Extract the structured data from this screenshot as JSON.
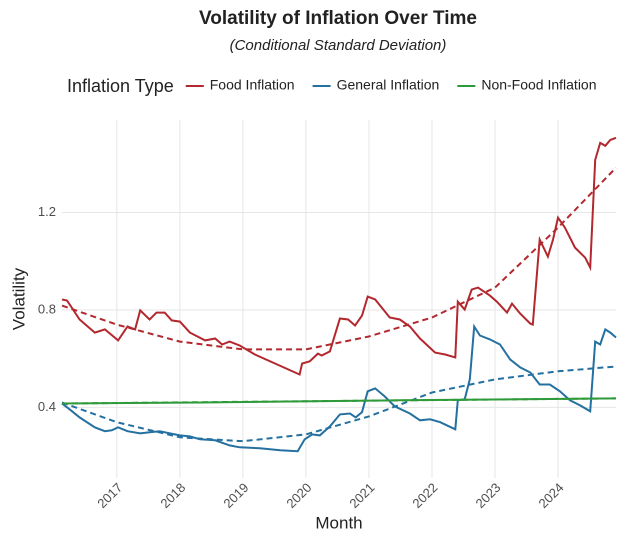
{
  "chart_data": {
    "type": "line",
    "title": "Volatility of Inflation Over Time",
    "subtitle": "(Conditional Standard Deviation)",
    "x_label": "Month",
    "y_label": "Volatility",
    "legend_title": "Inflation Type",
    "legend_position": "top",
    "grid": true,
    "xlim": [
      2016.13,
      2024.92
    ],
    "xticks": [
      2017,
      2018,
      2019,
      2020,
      2021,
      2022,
      2023,
      2024
    ],
    "ylim": [
      0.11,
      1.58
    ],
    "yticks": [
      0.4,
      0.8,
      1.2
    ],
    "series": [
      {
        "name": "Food Inflation",
        "color": "#b2282e",
        "x": [
          2016.13,
          2016.21,
          2016.41,
          2016.65,
          2016.81,
          2017.02,
          2017.17,
          2017.29,
          2017.37,
          2017.52,
          2017.63,
          2017.76,
          2017.87,
          2018.0,
          2018.16,
          2018.4,
          2018.56,
          2018.67,
          2018.79,
          2018.95,
          2019.19,
          2019.51,
          2019.9,
          2019.94,
          2020.06,
          2020.19,
          2020.25,
          2020.38,
          2020.54,
          2020.67,
          2020.78,
          2020.89,
          2020.98,
          2021.1,
          2021.33,
          2021.49,
          2021.65,
          2021.81,
          2022.05,
          2022.21,
          2022.37,
          2022.41,
          2022.52,
          2022.63,
          2022.73,
          2022.92,
          2023.03,
          2023.19,
          2023.27,
          2023.4,
          2023.56,
          2023.6,
          2023.71,
          2023.84,
          2023.92,
          2024.0,
          2024.11,
          2024.27,
          2024.43,
          2024.51,
          2024.59,
          2024.67,
          2024.75,
          2024.83,
          2024.92
        ],
        "values": [
          0.843,
          0.839,
          0.761,
          0.707,
          0.72,
          0.675,
          0.732,
          0.72,
          0.798,
          0.761,
          0.789,
          0.789,
          0.757,
          0.752,
          0.707,
          0.675,
          0.683,
          0.658,
          0.67,
          0.654,
          0.617,
          0.58,
          0.535,
          0.58,
          0.589,
          0.621,
          0.613,
          0.63,
          0.765,
          0.761,
          0.736,
          0.777,
          0.855,
          0.843,
          0.769,
          0.761,
          0.732,
          0.683,
          0.625,
          0.617,
          0.605,
          0.834,
          0.802,
          0.884,
          0.892,
          0.859,
          0.834,
          0.789,
          0.826,
          0.785,
          0.744,
          0.74,
          1.089,
          1.019,
          1.089,
          1.179,
          1.138,
          1.056,
          1.015,
          0.974,
          1.416,
          1.486,
          1.474,
          1.498,
          1.507
        ],
        "trend_x": [
          2016.13,
          2017,
          2018,
          2019,
          2020,
          2021,
          2022,
          2023,
          2024,
          2024.92
        ],
        "trend_values": [
          0.818,
          0.74,
          0.67,
          0.638,
          0.638,
          0.691,
          0.769,
          0.892,
          1.138,
          1.384
        ]
      },
      {
        "name": "General Inflation",
        "color": "#2470a0",
        "x": [
          2016.13,
          2016.25,
          2016.41,
          2016.65,
          2016.81,
          2016.92,
          2017.02,
          2017.17,
          2017.37,
          2017.52,
          2017.68,
          2017.84,
          2018.0,
          2018.16,
          2018.32,
          2018.56,
          2018.79,
          2018.95,
          2019.27,
          2019.59,
          2019.87,
          2019.98,
          2020.1,
          2020.22,
          2020.38,
          2020.54,
          2020.7,
          2020.79,
          2020.89,
          2020.98,
          2021.1,
          2021.25,
          2021.41,
          2021.65,
          2021.81,
          2021.97,
          2022.13,
          2022.37,
          2022.41,
          2022.52,
          2022.6,
          2022.67,
          2022.76,
          2022.92,
          2023.08,
          2023.24,
          2023.4,
          2023.56,
          2023.71,
          2023.87,
          2024.03,
          2024.19,
          2024.35,
          2024.51,
          2024.59,
          2024.67,
          2024.75,
          2024.83,
          2024.92
        ],
        "values": [
          0.416,
          0.392,
          0.359,
          0.318,
          0.302,
          0.306,
          0.318,
          0.302,
          0.293,
          0.298,
          0.302,
          0.293,
          0.285,
          0.281,
          0.269,
          0.265,
          0.244,
          0.236,
          0.232,
          0.224,
          0.22,
          0.269,
          0.289,
          0.285,
          0.322,
          0.371,
          0.375,
          0.359,
          0.38,
          0.466,
          0.478,
          0.445,
          0.404,
          0.375,
          0.347,
          0.351,
          0.339,
          0.31,
          0.429,
          0.433,
          0.515,
          0.732,
          0.695,
          0.679,
          0.658,
          0.597,
          0.564,
          0.543,
          0.494,
          0.494,
          0.466,
          0.429,
          0.408,
          0.384,
          0.67,
          0.658,
          0.72,
          0.707,
          0.687
        ],
        "trend_x": [
          2016.13,
          2017,
          2018,
          2019,
          2020,
          2021,
          2022,
          2023,
          2024,
          2024.92
        ],
        "trend_values": [
          0.42,
          0.339,
          0.277,
          0.261,
          0.289,
          0.363,
          0.461,
          0.515,
          0.548,
          0.568
        ]
      },
      {
        "name": "Non-Food Inflation",
        "color": "#2e9a3a",
        "x": [
          2016.13,
          2018.32,
          2021.49,
          2024.92
        ],
        "values": [
          0.416,
          0.42,
          0.429,
          0.437
        ],
        "trend_x": [
          2016.13,
          2024.92
        ],
        "trend_values": [
          0.416,
          0.437
        ]
      }
    ]
  }
}
